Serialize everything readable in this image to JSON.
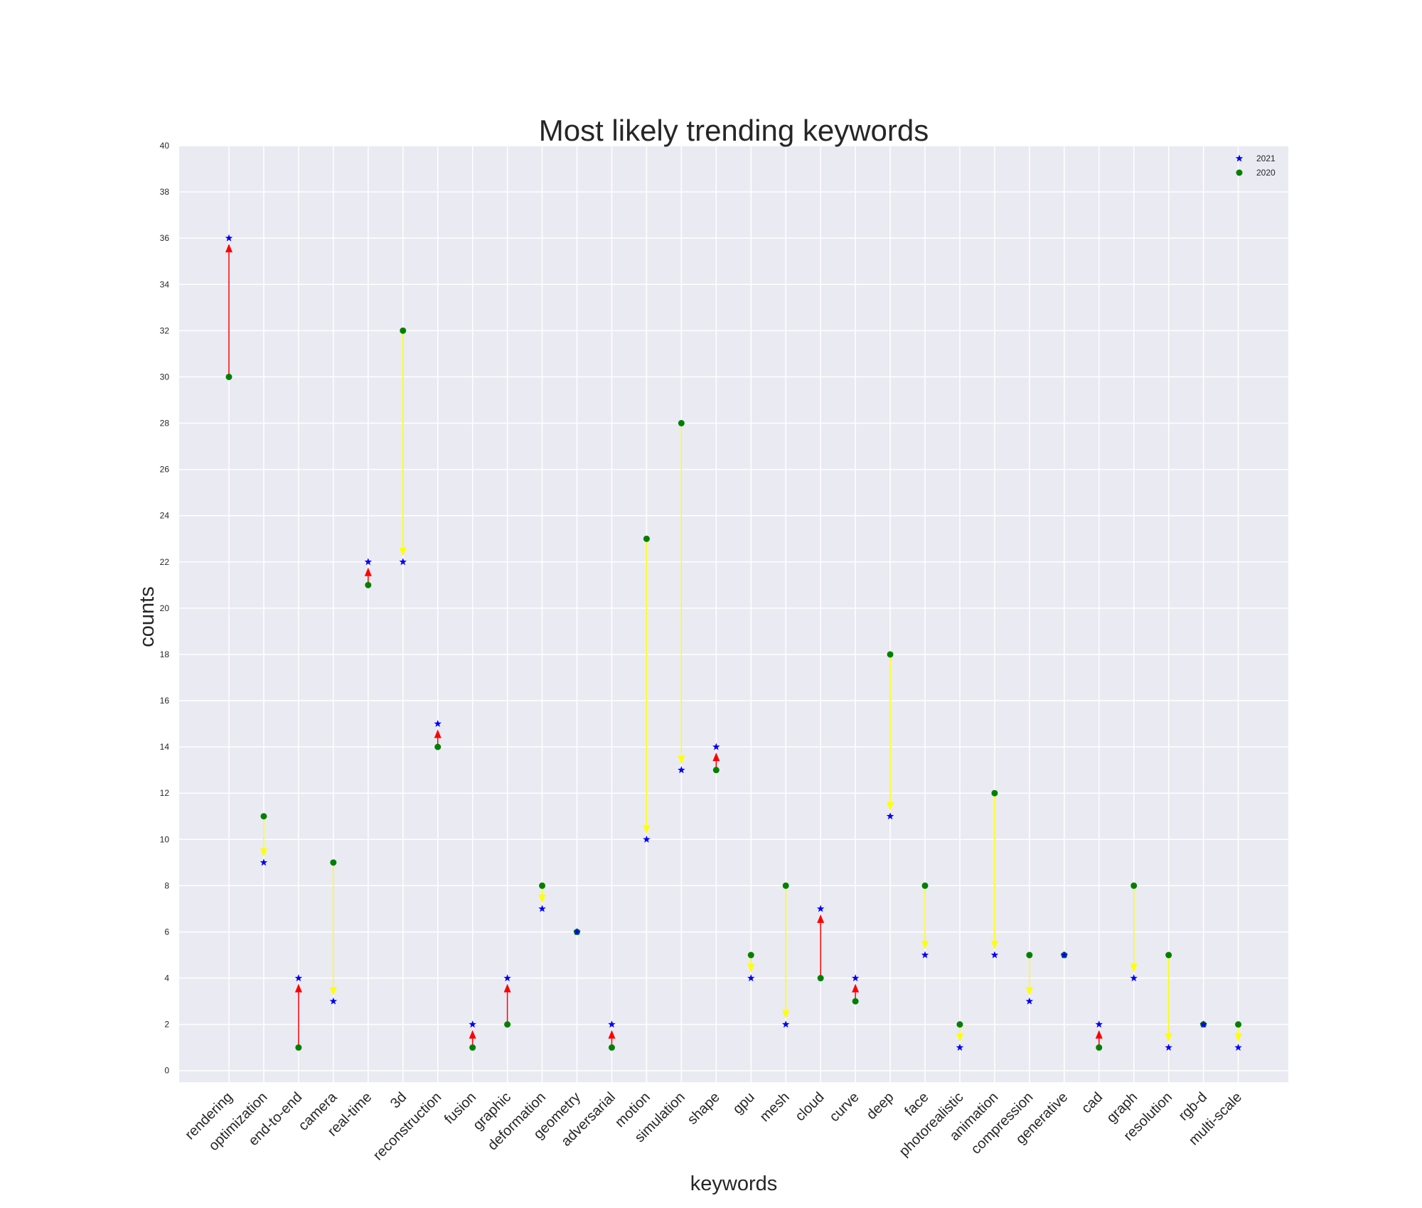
{
  "chart_data": {
    "type": "scatter",
    "title": "Most likely trending keywords",
    "xlabel": "keywords",
    "ylabel": "counts",
    "ylim": [
      -0.5,
      40
    ],
    "yticks": [
      0,
      2,
      4,
      6,
      8,
      10,
      12,
      14,
      16,
      18,
      20,
      22,
      24,
      26,
      28,
      30,
      32,
      34,
      36,
      38,
      40
    ],
    "grid": true,
    "legend_position": "top-right",
    "background": "#EAEAF2",
    "categories": [
      "rendering",
      "optimization",
      "end-to-end",
      "camera",
      "real-time",
      "3d",
      "reconstruction",
      "fusion",
      "graphic",
      "deformation",
      "geometry",
      "adversarial",
      "motion",
      "simulation",
      "shape",
      "gpu",
      "mesh",
      "cloud",
      "curve",
      "deep",
      "face",
      "photorealistic",
      "animation",
      "compression",
      "generative",
      "cad",
      "graph",
      "resolution",
      "rgb-d",
      "multi-scale"
    ],
    "series": [
      {
        "name": "2021",
        "marker": "star",
        "color": "#0000ff",
        "values": [
          36,
          9,
          4,
          3,
          22,
          22,
          15,
          2,
          4,
          7,
          6,
          2,
          10,
          13,
          14,
          4,
          2,
          7,
          4,
          11,
          5,
          1,
          5,
          3,
          5,
          2,
          4,
          1,
          2,
          1
        ]
      },
      {
        "name": "2020",
        "marker": "circle",
        "color": "#008000",
        "values": [
          30,
          11,
          1,
          9,
          21,
          32,
          14,
          1,
          2,
          8,
          6,
          1,
          23,
          28,
          13,
          5,
          8,
          4,
          3,
          18,
          8,
          2,
          12,
          5,
          5,
          1,
          8,
          5,
          2,
          2
        ]
      }
    ],
    "arrow_colors": {
      "increase": "#ff0000",
      "decrease": "#ffff00"
    }
  }
}
